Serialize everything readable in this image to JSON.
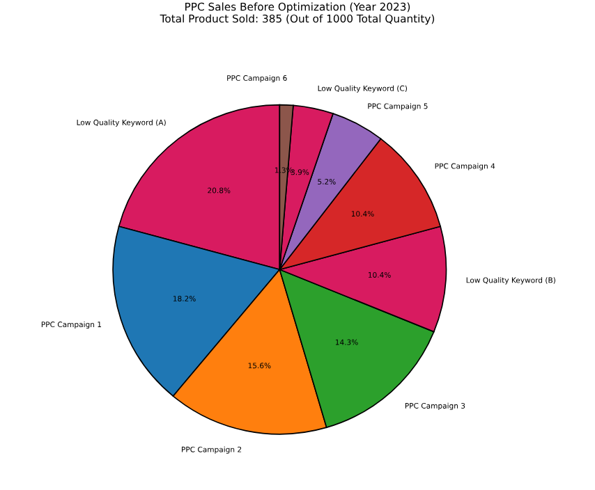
{
  "chart_data": {
    "type": "pie",
    "title": "PPC Sales Before Optimization (Year 2023)\nTotal Product Sold: 385 (Out of 1000 Total Quantity)",
    "categories": [
      "Low Quality Keyword (A)",
      "PPC Campaign 1",
      "PPC Campaign 2",
      "PPC Campaign 3",
      "Low Quality Keyword (B)",
      "PPC Campaign 4",
      "PPC Campaign 5",
      "Low Quality Keyword (C)",
      "PPC Campaign 6"
    ],
    "values": [
      20.8,
      18.2,
      15.6,
      14.3,
      10.4,
      10.4,
      5.2,
      3.9,
      1.3
    ],
    "colors": [
      "#d81b60",
      "#1f77b4",
      "#ff7f0e",
      "#2ca02c",
      "#d81b60",
      "#d62728",
      "#9467bd",
      "#d81b60",
      "#8c564b"
    ],
    "value_labels": [
      "20.8%",
      "18.2%",
      "15.6%",
      "14.3%",
      "10.4%",
      "10.4%",
      "5.2%",
      "3.9%",
      "1.3%"
    ]
  }
}
